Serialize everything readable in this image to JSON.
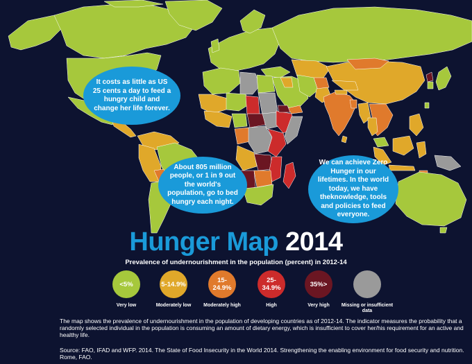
{
  "bubbles": [
    {
      "text": "It costs as little as US 25 cents a day to feed a hungry child and change her life forever."
    },
    {
      "text": "About 805 million people, or 1 in 9 out the world's population, go to bed hungry each night."
    },
    {
      "text": "We can achieve Zero Hunger in our lifetimes. In the world today, we have theknowledge, tools and policies to feed everyone."
    }
  ],
  "title": {
    "main": "Hunger Map",
    "year": "2014"
  },
  "subtitle": "Prevalence of undernourishment in the population (percent) in 2012-14",
  "legend": [
    {
      "range": "<5%",
      "label": "Very low",
      "color": "#a6c83c"
    },
    {
      "range": "5-14.9%",
      "label": "Moderately low",
      "color": "#e0a82a"
    },
    {
      "range": "15-24.9%",
      "label": "Moderately high",
      "color": "#e07a2c"
    },
    {
      "range": "25-34.9%",
      "label": "High",
      "color": "#cc2b2b"
    },
    {
      "range": "35%>",
      "label": "Very high",
      "color": "#6b1622"
    },
    {
      "range": "",
      "label": "Missing or insufficient data",
      "color": "#9a9a9a"
    }
  ],
  "description": "The map shows the prevalence of undernourishment in the population of developing countries as of 2012-14. The indicator measures the probability that a randomly selected individual in the population is consuming an amount of dietary energy, which is insufficient to cover her/his requirement for an active and healthy life.",
  "source": "Source: FAO, IFAD and WFP. 2014. The State of Food Insecurity in the World 2014. Strengthening the enabling environment for food security and nutrition. Rome, FAO.",
  "colors": {
    "background": "#0d1330",
    "accent": "#1a9ad9",
    "land_default": "#a6c83c",
    "border": "#ffffff"
  }
}
